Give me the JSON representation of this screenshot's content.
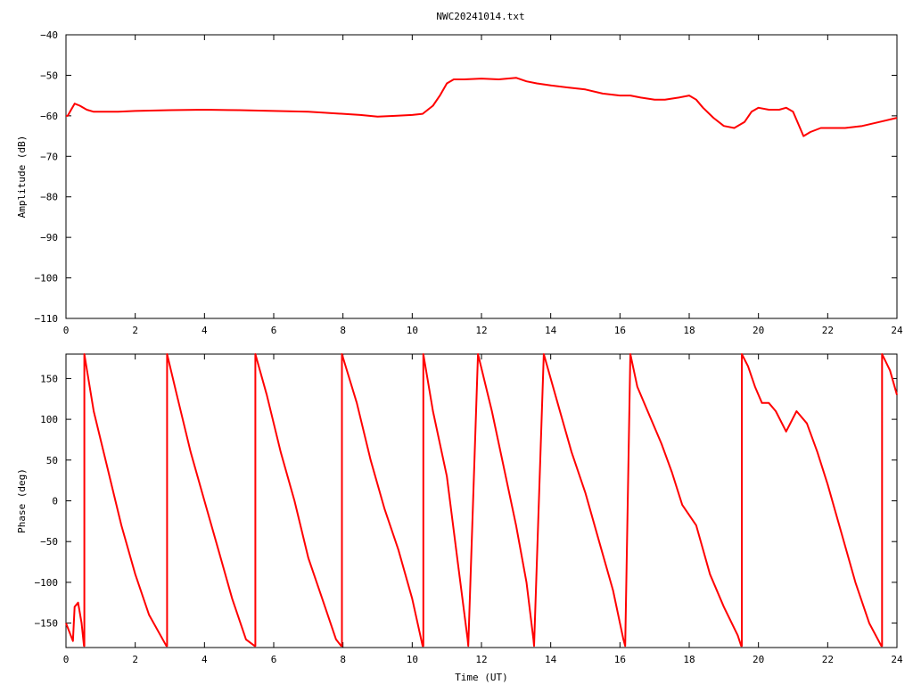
{
  "title": "NWC20241014.txt",
  "colors": {
    "series": "#ff0000",
    "axis": "#000000",
    "background": "#ffffff"
  },
  "chart_data": [
    {
      "type": "line",
      "ylabel": "Amplitude (dB)",
      "xlabel": "",
      "xlim": [
        0,
        24
      ],
      "ylim": [
        -110,
        -40
      ],
      "xticks": [
        "0",
        "2",
        "4",
        "6",
        "8",
        "10",
        "12",
        "14",
        "16",
        "18",
        "20",
        "22",
        "24"
      ],
      "yticks": [
        "−40",
        "−50",
        "−60",
        "−70",
        "−80",
        "−90",
        "−100",
        "−110"
      ],
      "grid": false,
      "series": [
        {
          "x": [
            0,
            0.05,
            0.15,
            0.25,
            0.4,
            0.6,
            0.8,
            1,
            1.5,
            2,
            3,
            4,
            5,
            6,
            7,
            8,
            8.5,
            9,
            9.5,
            10,
            10.3,
            10.6,
            10.8,
            11,
            11.2,
            11.5,
            12,
            12.5,
            13,
            13.3,
            13.6,
            14,
            14.5,
            15,
            15.5,
            16,
            16.3,
            16.6,
            17,
            17.3,
            17.7,
            18,
            18.2,
            18.4,
            18.7,
            19,
            19.3,
            19.6,
            19.8,
            20,
            20.3,
            20.6,
            20.8,
            21,
            21.2,
            21.3,
            21.5,
            21.8,
            22,
            22.5,
            23,
            23.5,
            24
          ],
          "y": [
            -60,
            -60,
            -58.5,
            -57,
            -57.5,
            -58.5,
            -59,
            -59,
            -59,
            -58.8,
            -58.6,
            -58.5,
            -58.6,
            -58.8,
            -59,
            -59.5,
            -59.8,
            -60.2,
            -60,
            -59.8,
            -59.5,
            -57.5,
            -55,
            -52,
            -51,
            -51,
            -50.8,
            -51,
            -50.6,
            -51.5,
            -52,
            -52.5,
            -53,
            -53.5,
            -54.5,
            -55,
            -55,
            -55.5,
            -56,
            -56,
            -55.5,
            -55,
            -56,
            -58,
            -60.5,
            -62.5,
            -63,
            -61.5,
            -59,
            -58,
            -58.5,
            -58.5,
            -58,
            -59,
            -63,
            -65,
            -64,
            -63,
            -63,
            -63,
            -62.5,
            -61.5,
            -60.5
          ]
        }
      ]
    },
    {
      "type": "line",
      "ylabel": "Phase (deg)",
      "xlabel": "Time (UT)",
      "xlim": [
        0,
        24
      ],
      "ylim": [
        -180,
        180
      ],
      "xticks": [
        "0",
        "2",
        "4",
        "6",
        "8",
        "10",
        "12",
        "14",
        "16",
        "18",
        "20",
        "22",
        "24"
      ],
      "yticks": [
        "150",
        "100",
        "50",
        "0",
        "−50",
        "−100",
        "−150"
      ],
      "grid": false,
      "series": [
        {
          "x": [
            0,
            0.2,
            0.25,
            0.35,
            0.45,
            0.52,
            0.53,
            0.53,
            0.8,
            1.2,
            1.6,
            2,
            2.4,
            2.9,
            2.92,
            2.92,
            3.2,
            3.6,
            4,
            4.4,
            4.8,
            5.2,
            5.45,
            5.47,
            5.47,
            5.8,
            6.2,
            6.6,
            7,
            7.4,
            7.8,
            7.95,
            7.97,
            7.97,
            8.4,
            8.8,
            9.2,
            9.6,
            10,
            10.3,
            10.32,
            10.32,
            10.6,
            11,
            11.3,
            11.6,
            11.62,
            11.62,
            11.9,
            12.3,
            12.7,
            13,
            13.3,
            13.5,
            13.52,
            13.52,
            13.8,
            14.2,
            14.6,
            15,
            15.4,
            15.8,
            16,
            16.1,
            16.15,
            16.15,
            16.3,
            16.4,
            16.5,
            16.8,
            17.2,
            17.5,
            17.8,
            18.2,
            18.6,
            19,
            19.4,
            19.5,
            19.52,
            19.52,
            19.7,
            19.9,
            20.1,
            20.3,
            20.5,
            20.8,
            21.1,
            21.4,
            21.7,
            22,
            22.4,
            22.8,
            23.2,
            23.55,
            23.57,
            23.57,
            23.8,
            24
          ],
          "y": [
            -150,
            -172,
            -130,
            -125,
            -150,
            -178,
            -178,
            180,
            110,
            40,
            -30,
            -90,
            -140,
            -178,
            -178,
            180,
            130,
            60,
            0,
            -60,
            -120,
            -170,
            -178,
            -178,
            180,
            130,
            60,
            0,
            -70,
            -120,
            -170,
            -178,
            -178,
            180,
            120,
            50,
            -10,
            -60,
            -120,
            -178,
            -178,
            180,
            110,
            30,
            -70,
            -170,
            -178,
            -178,
            180,
            110,
            30,
            -30,
            -100,
            -170,
            -178,
            -178,
            180,
            120,
            60,
            10,
            -50,
            -110,
            -150,
            -170,
            -178,
            -178,
            180,
            160,
            140,
            110,
            70,
            35,
            -5,
            -30,
            -90,
            -130,
            -165,
            -178,
            -178,
            180,
            165,
            140,
            120,
            120,
            110,
            85,
            110,
            95,
            60,
            20,
            -40,
            -100,
            -150,
            -178,
            -178,
            180,
            160,
            130
          ]
        }
      ]
    }
  ]
}
